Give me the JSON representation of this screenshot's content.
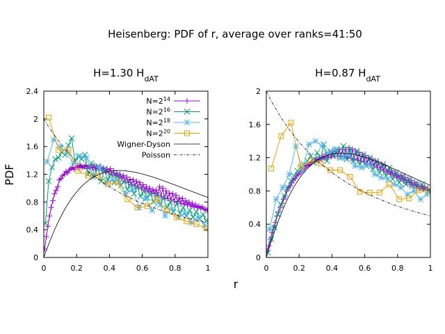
{
  "figure": {
    "title": "Heisenberg: PDF of r, average over ranks=41:50",
    "xlabel": "r",
    "ylabel": "PDF"
  },
  "legend": [
    {
      "label_base": "N=2",
      "label_sup": "14",
      "color": "#9400d3",
      "marker": "plus"
    },
    {
      "label_base": "N=2",
      "label_sup": "16",
      "color": "#009e73",
      "marker": "cross"
    },
    {
      "label_base": "N=2",
      "label_sup": "18",
      "color": "#56b4e9",
      "marker": "star"
    },
    {
      "label_base": "N=2",
      "label_sup": "20",
      "color": "#e69f00",
      "marker": "square"
    },
    {
      "label_base": "Wigner-Dyson",
      "label_sup": "",
      "color": "#000000",
      "marker": "line"
    },
    {
      "label_base": "Poisson",
      "label_sup": "",
      "color": "#000000",
      "marker": "dashdot"
    }
  ],
  "chart_data": [
    {
      "type": "line",
      "title_base": "H=1.30 H",
      "title_sub": "dAT",
      "xlim": [
        0,
        1
      ],
      "ylim": [
        0,
        2.4
      ],
      "xticks": [
        "0",
        "0.2",
        "0.4",
        "0.6",
        "0.8",
        "1"
      ],
      "xtick_values": [
        0,
        0.2,
        0.4,
        0.6,
        0.8,
        1
      ],
      "yticks": [
        "0",
        "0.4",
        "0.8",
        "1.2",
        "1.6",
        "2",
        "2.4"
      ],
      "ytick_values": [
        0,
        0.4,
        0.8,
        1.2,
        1.6,
        2,
        2.4
      ],
      "series": [
        {
          "name": "N=2^14",
          "x": [
            0.005,
            0.015,
            0.025,
            0.035,
            0.045,
            0.055,
            0.065,
            0.075,
            0.085,
            0.095,
            0.105,
            0.115,
            0.125,
            0.135,
            0.145,
            0.155,
            0.165,
            0.175,
            0.185,
            0.195,
            0.205,
            0.215,
            0.225,
            0.235,
            0.245,
            0.255,
            0.265,
            0.275,
            0.285,
            0.295,
            0.305,
            0.315,
            0.325,
            0.335,
            0.345,
            0.355,
            0.365,
            0.375,
            0.385,
            0.395,
            0.405,
            0.415,
            0.425,
            0.435,
            0.445,
            0.455,
            0.465,
            0.475,
            0.485,
            0.495,
            0.505,
            0.515,
            0.525,
            0.535,
            0.545,
            0.555,
            0.565,
            0.575,
            0.585,
            0.595,
            0.605,
            0.615,
            0.625,
            0.635,
            0.645,
            0.655,
            0.665,
            0.675,
            0.685,
            0.695,
            0.705,
            0.715,
            0.725,
            0.735,
            0.745,
            0.755,
            0.765,
            0.775,
            0.785,
            0.795,
            0.805,
            0.815,
            0.825,
            0.835,
            0.845,
            0.855,
            0.865,
            0.875,
            0.885,
            0.895,
            0.905,
            0.915,
            0.925,
            0.935,
            0.945,
            0.955,
            0.965,
            0.975,
            0.985,
            0.995
          ],
          "y": [
            0.12,
            0.3,
            0.45,
            0.6,
            0.72,
            0.82,
            0.92,
            0.97,
            1.02,
            1.12,
            1.14,
            1.18,
            1.2,
            1.24,
            1.22,
            1.26,
            1.28,
            1.3,
            1.27,
            1.3,
            1.32,
            1.29,
            1.33,
            1.3,
            1.31,
            1.33,
            1.28,
            1.32,
            1.3,
            1.29,
            1.33,
            1.27,
            1.31,
            1.28,
            1.3,
            1.26,
            1.29,
            1.24,
            1.27,
            1.22,
            1.28,
            1.2,
            1.25,
            1.18,
            1.22,
            1.16,
            1.2,
            1.14,
            1.18,
            1.1,
            1.16,
            1.08,
            1.13,
            1.05,
            1.12,
            1.03,
            1.1,
            1.01,
            1.08,
            0.99,
            1.05,
            0.97,
            1.02,
            0.95,
            1.0,
            0.93,
            0.98,
            0.92,
            0.97,
            0.9,
            1.02,
            0.88,
            1.0,
            0.86,
            0.96,
            0.85,
            0.93,
            0.83,
            0.92,
            0.81,
            0.9,
            0.8,
            0.86,
            0.78,
            0.85,
            0.77,
            0.82,
            0.76,
            0.8,
            0.74,
            0.78,
            0.73,
            0.76,
            0.72,
            0.74,
            0.71,
            0.73,
            0.7,
            0.69,
            0.68
          ]
        },
        {
          "name": "N=2^16",
          "x": [
            0.01,
            0.03,
            0.05,
            0.07,
            0.09,
            0.11,
            0.13,
            0.15,
            0.17,
            0.19,
            0.21,
            0.23,
            0.25,
            0.27,
            0.29,
            0.31,
            0.33,
            0.35,
            0.37,
            0.39,
            0.41,
            0.43,
            0.45,
            0.47,
            0.49,
            0.51,
            0.53,
            0.55,
            0.57,
            0.59,
            0.61,
            0.63,
            0.65,
            0.67,
            0.69,
            0.71,
            0.73,
            0.75,
            0.77,
            0.79,
            0.81,
            0.83,
            0.85,
            0.87,
            0.89,
            0.91,
            0.93,
            0.95,
            0.97,
            0.99
          ],
          "y": [
            0.49,
            1.1,
            1.3,
            1.42,
            1.44,
            1.52,
            1.48,
            1.62,
            1.72,
            1.38,
            1.46,
            1.42,
            1.48,
            1.2,
            1.36,
            1.18,
            1.32,
            1.1,
            1.28,
            1.12,
            1.2,
            1.08,
            1.18,
            1.04,
            1.1,
            0.98,
            1.06,
            0.92,
            1.02,
            0.88,
            0.96,
            0.86,
            0.92,
            0.8,
            0.9,
            0.76,
            0.86,
            0.72,
            0.8,
            0.66,
            0.78,
            0.64,
            0.72,
            0.6,
            0.68,
            0.58,
            0.66,
            0.56,
            0.62,
            0.53
          ]
        },
        {
          "name": "N=2^18",
          "x": [
            0.02,
            0.06,
            0.1,
            0.14,
            0.18,
            0.22,
            0.26,
            0.3,
            0.34,
            0.38,
            0.42,
            0.46,
            0.5,
            0.54,
            0.58,
            0.62,
            0.66,
            0.7,
            0.74,
            0.78,
            0.82,
            0.86,
            0.9,
            0.94,
            0.98
          ],
          "y": [
            1.38,
            1.7,
            1.6,
            1.52,
            1.36,
            1.46,
            1.44,
            1.16,
            1.3,
            1.08,
            1.12,
            1.1,
            0.92,
            0.98,
            0.72,
            0.86,
            0.68,
            0.8,
            0.6,
            0.7,
            0.58,
            0.64,
            0.5,
            0.58,
            0.46
          ]
        },
        {
          "name": "N=2^20",
          "x": [
            0.03,
            0.09,
            0.15,
            0.21,
            0.27,
            0.33,
            0.39,
            0.45,
            0.51,
            0.57,
            0.63,
            0.69,
            0.75,
            0.81,
            0.87,
            0.93,
            0.99
          ],
          "y": [
            2.02,
            1.55,
            1.55,
            1.25,
            1.18,
            1.18,
            1.06,
            1.08,
            0.84,
            0.72,
            0.74,
            0.84,
            0.68,
            0.58,
            0.52,
            0.48,
            0.42
          ]
        },
        {
          "name": "Wigner-Dyson",
          "function": "wigner_dyson"
        },
        {
          "name": "Poisson",
          "function": "poisson"
        }
      ]
    },
    {
      "type": "line",
      "title_base": "H=0.87 H",
      "title_sub": "dAT",
      "xlim": [
        0,
        1
      ],
      "ylim": [
        0,
        2
      ],
      "xticks": [
        "0",
        "0.2",
        "0.4",
        "0.6",
        "0.8",
        "1"
      ],
      "xtick_values": [
        0,
        0.2,
        0.4,
        0.6,
        0.8,
        1
      ],
      "yticks": [
        "0",
        "0.4",
        "0.8",
        "1.2",
        "1.6",
        "2"
      ],
      "ytick_values": [
        0,
        0.4,
        0.8,
        1.2,
        1.6,
        2
      ],
      "series": [
        {
          "name": "N=2^14",
          "x": [
            0.005,
            0.015,
            0.025,
            0.035,
            0.045,
            0.055,
            0.065,
            0.075,
            0.085,
            0.095,
            0.105,
            0.115,
            0.125,
            0.135,
            0.145,
            0.155,
            0.165,
            0.175,
            0.185,
            0.195,
            0.205,
            0.215,
            0.225,
            0.235,
            0.245,
            0.255,
            0.265,
            0.275,
            0.285,
            0.295,
            0.305,
            0.315,
            0.325,
            0.335,
            0.345,
            0.355,
            0.365,
            0.375,
            0.385,
            0.395,
            0.405,
            0.415,
            0.425,
            0.435,
            0.445,
            0.455,
            0.465,
            0.475,
            0.485,
            0.495,
            0.505,
            0.515,
            0.525,
            0.535,
            0.545,
            0.555,
            0.565,
            0.575,
            0.585,
            0.595,
            0.605,
            0.615,
            0.625,
            0.635,
            0.645,
            0.655,
            0.665,
            0.675,
            0.685,
            0.695,
            0.705,
            0.715,
            0.725,
            0.735,
            0.745,
            0.755,
            0.765,
            0.775,
            0.785,
            0.795,
            0.805,
            0.815,
            0.825,
            0.835,
            0.845,
            0.855,
            0.865,
            0.875,
            0.885,
            0.895,
            0.905,
            0.915,
            0.925,
            0.935,
            0.945,
            0.955,
            0.965,
            0.975,
            0.985,
            0.995
          ],
          "y": [
            0.08,
            0.14,
            0.22,
            0.3,
            0.36,
            0.42,
            0.5,
            0.55,
            0.6,
            0.65,
            0.7,
            0.74,
            0.8,
            0.84,
            0.86,
            0.9,
            0.93,
            0.95,
            0.98,
            1.0,
            1.02,
            1.04,
            1.06,
            1.08,
            1.1,
            1.11,
            1.12,
            1.14,
            1.16,
            1.15,
            1.18,
            1.17,
            1.2,
            1.18,
            1.22,
            1.19,
            1.24,
            1.2,
            1.26,
            1.21,
            1.27,
            1.22,
            1.28,
            1.22,
            1.3,
            1.22,
            1.3,
            1.21,
            1.3,
            1.2,
            1.32,
            1.19,
            1.3,
            1.18,
            1.28,
            1.17,
            1.26,
            1.16,
            1.24,
            1.15,
            1.22,
            1.13,
            1.2,
            1.12,
            1.18,
            1.1,
            1.16,
            1.08,
            1.14,
            1.06,
            1.12,
            1.04,
            1.1,
            1.02,
            1.06,
            1.0,
            1.04,
            0.98,
            1.02,
            0.96,
            0.99,
            0.94,
            0.98,
            0.92,
            0.96,
            0.9,
            0.94,
            0.88,
            0.92,
            0.86,
            0.9,
            0.84,
            0.88,
            0.83,
            0.86,
            0.82,
            0.85,
            0.81,
            0.83,
            0.8
          ]
        },
        {
          "name": "N=2^16",
          "x": [
            0.01,
            0.03,
            0.05,
            0.07,
            0.09,
            0.11,
            0.13,
            0.15,
            0.17,
            0.19,
            0.21,
            0.23,
            0.25,
            0.27,
            0.29,
            0.31,
            0.33,
            0.35,
            0.37,
            0.39,
            0.41,
            0.43,
            0.45,
            0.47,
            0.49,
            0.51,
            0.53,
            0.55,
            0.57,
            0.59,
            0.61,
            0.63,
            0.65,
            0.67,
            0.69,
            0.71,
            0.73,
            0.75,
            0.77,
            0.79,
            0.81,
            0.83,
            0.85,
            0.87,
            0.89,
            0.91,
            0.93,
            0.95,
            0.97,
            0.99
          ],
          "y": [
            0.06,
            0.22,
            0.36,
            0.52,
            0.64,
            0.74,
            0.84,
            0.92,
            0.98,
            1.04,
            1.08,
            1.12,
            1.16,
            1.22,
            1.14,
            1.26,
            1.18,
            1.36,
            1.16,
            1.28,
            1.22,
            1.3,
            1.2,
            1.34,
            1.18,
            1.3,
            1.16,
            1.28,
            1.12,
            1.24,
            1.1,
            1.2,
            1.06,
            1.16,
            1.02,
            1.12,
            0.98,
            1.08,
            0.94,
            1.02,
            0.9,
            0.98,
            0.88,
            0.94,
            0.86,
            0.9,
            0.84,
            0.88,
            0.82,
            0.8
          ]
        },
        {
          "name": "N=2^18",
          "x": [
            0.02,
            0.06,
            0.1,
            0.14,
            0.18,
            0.22,
            0.26,
            0.3,
            0.34,
            0.38,
            0.42,
            0.46,
            0.5,
            0.54,
            0.58,
            0.62,
            0.66,
            0.7,
            0.74,
            0.78,
            0.82,
            0.86,
            0.9,
            0.94,
            0.98
          ],
          "y": [
            0.34,
            0.7,
            0.84,
            1.0,
            1.34,
            1.05,
            1.36,
            1.4,
            1.34,
            1.26,
            1.3,
            1.2,
            1.24,
            1.1,
            1.08,
            1.12,
            1.0,
            0.96,
            0.94,
            0.88,
            0.84,
            0.76,
            0.8,
            0.7,
            0.76
          ]
        },
        {
          "name": "N=2^20",
          "x": [
            0.03,
            0.09,
            0.15,
            0.21,
            0.27,
            0.33,
            0.39,
            0.45,
            0.51,
            0.57,
            0.63,
            0.69,
            0.75,
            0.81,
            0.87,
            0.93,
            0.99
          ],
          "y": [
            1.07,
            1.46,
            1.62,
            1.09,
            1.16,
            1.13,
            1.05,
            1.05,
            0.97,
            0.79,
            0.78,
            0.78,
            0.88,
            0.7,
            0.71,
            0.81,
            0.8
          ]
        },
        {
          "name": "Wigner-Dyson",
          "function": "wigner_dyson"
        },
        {
          "name": "Poisson",
          "function": "poisson"
        }
      ]
    }
  ]
}
